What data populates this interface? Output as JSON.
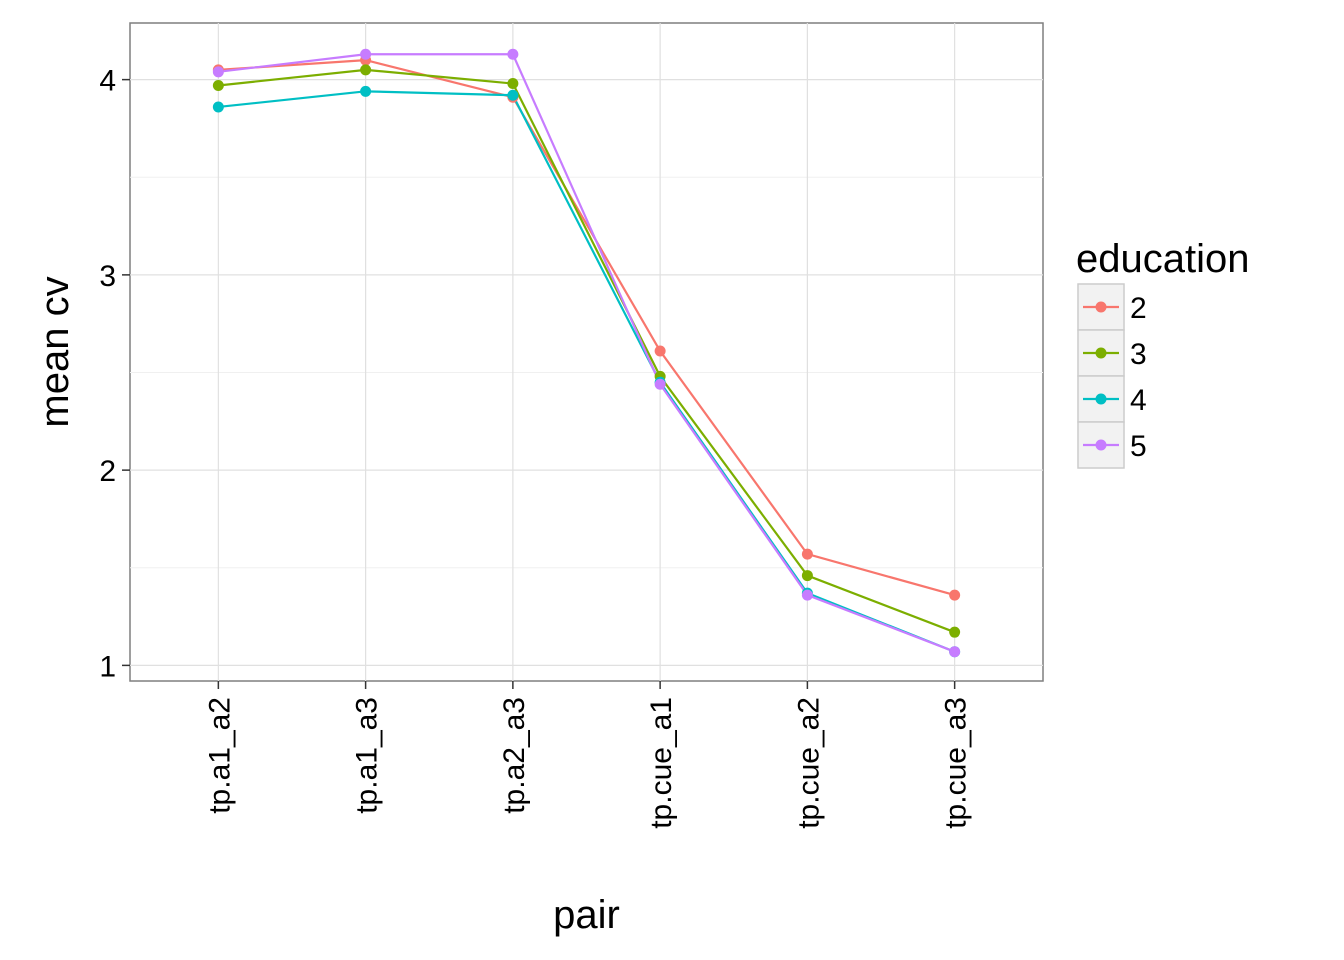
{
  "chart_data": {
    "type": "line",
    "xlabel": "pair",
    "ylabel": "mean cv",
    "categories": [
      "tp.a1_a2",
      "tp.a1_a3",
      "tp.a2_a3",
      "tp.cue_a1",
      "tp.cue_a2",
      "tp.cue_a3"
    ],
    "ylim": [
      0.92,
      4.29
    ],
    "yticks": [
      "1",
      "2",
      "3",
      "4"
    ],
    "grid": true,
    "legend": {
      "title": "education",
      "position": "right"
    },
    "series": [
      {
        "name": "2",
        "color": "#F8766D",
        "values": [
          4.05,
          4.1,
          3.91,
          2.61,
          1.57,
          1.36
        ]
      },
      {
        "name": "3",
        "color": "#7CAE00",
        "values": [
          3.97,
          4.05,
          3.98,
          2.48,
          1.46,
          1.17
        ]
      },
      {
        "name": "4",
        "color": "#00BFC4",
        "values": [
          3.86,
          3.94,
          3.92,
          2.45,
          1.37,
          1.07
        ]
      },
      {
        "name": "5",
        "color": "#C77CFF",
        "values": [
          4.04,
          4.13,
          4.13,
          2.44,
          1.36,
          1.07
        ]
      }
    ]
  }
}
